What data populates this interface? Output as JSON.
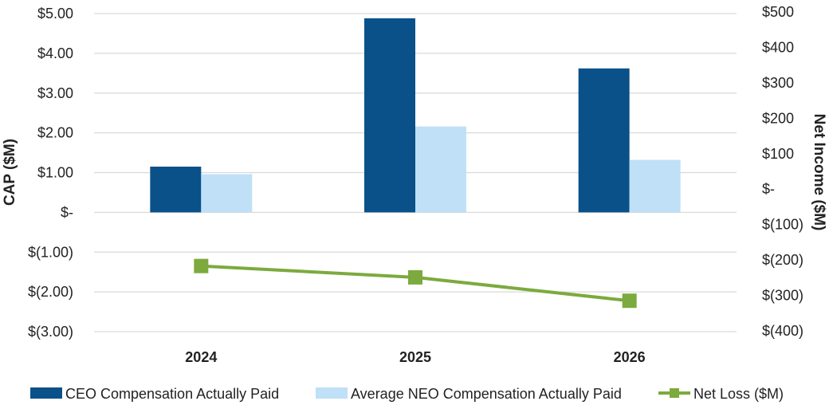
{
  "chart_data": {
    "type": "bar",
    "categories": [
      "2024",
      "2025",
      "2026"
    ],
    "series": [
      {
        "name": "CEO Compensation Actually Paid",
        "kind": "bar",
        "axis": "left",
        "color": "#0a5189",
        "values": [
          1.15,
          4.88,
          3.62
        ]
      },
      {
        "name": "Average NEO Compensation Actually Paid",
        "kind": "bar",
        "axis": "left",
        "color": "#bfe0f7",
        "values": [
          0.96,
          2.16,
          1.32
        ]
      },
      {
        "name": "Net Loss ($M)",
        "kind": "line",
        "axis": "right",
        "color": "#7caa3e",
        "values": [
          -217,
          -249,
          -315
        ]
      }
    ],
    "left_axis": {
      "title": "CAP ($M)",
      "min": -3,
      "max": 5,
      "step": 1,
      "tick_labels": [
        "$(3.00)",
        "$(2.00)",
        "$(1.00)",
        "$-",
        "$1.00",
        "$2.00",
        "$3.00",
        "$4.00",
        "$5.00"
      ]
    },
    "right_axis": {
      "title": "Net Income ($M)",
      "min": -400,
      "max": 500,
      "step": 100,
      "tick_labels": [
        "$(400)",
        "$(300)",
        "$(200)",
        "$(100)",
        "$-",
        "$100",
        "$200",
        "$300",
        "$400",
        "$500"
      ]
    },
    "grid": true,
    "legend_position": "bottom"
  }
}
